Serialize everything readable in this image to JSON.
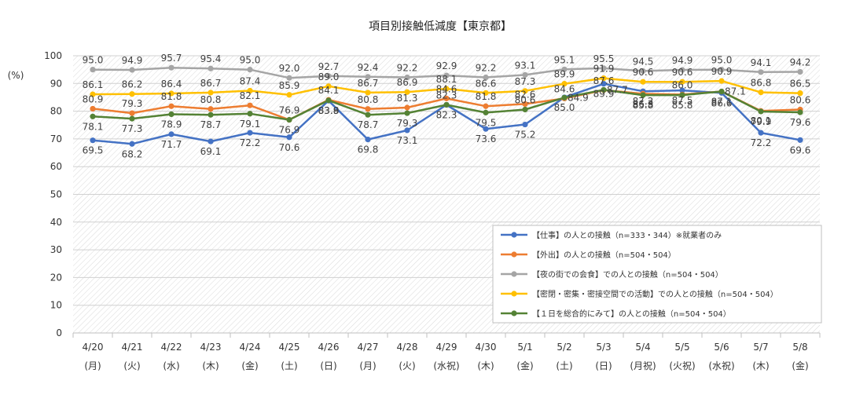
{
  "chart_data": {
    "type": "line",
    "title": "項目別接触低減度【東京都】",
    "ylabel": "(%)",
    "xlabel": "",
    "ylim": [
      0,
      100
    ],
    "yticks": [
      0,
      10,
      20,
      30,
      40,
      50,
      60,
      70,
      80,
      90,
      100
    ],
    "grid": true,
    "legend_position": "bottom-right",
    "categories": [
      {
        "date": "4/20",
        "day": "(月)"
      },
      {
        "date": "4/21",
        "day": "(火)"
      },
      {
        "date": "4/22",
        "day": "(水)"
      },
      {
        "date": "4/23",
        "day": "(木)"
      },
      {
        "date": "4/24",
        "day": "(金)"
      },
      {
        "date": "4/25",
        "day": "(土)"
      },
      {
        "date": "4/26",
        "day": "(日)"
      },
      {
        "date": "4/27",
        "day": "(月)"
      },
      {
        "date": "4/28",
        "day": "(火)"
      },
      {
        "date": "4/29",
        "day": "(水祝)"
      },
      {
        "date": "4/30",
        "day": "(木)"
      },
      {
        "date": "5/1",
        "day": "(金)"
      },
      {
        "date": "5/2",
        "day": "(土)"
      },
      {
        "date": "5/3",
        "day": "(日)"
      },
      {
        "date": "5/4",
        "day": "(月祝)"
      },
      {
        "date": "5/5",
        "day": "(火祝)"
      },
      {
        "date": "5/6",
        "day": "(水祝)"
      },
      {
        "date": "5/7",
        "day": "(木)"
      },
      {
        "date": "5/8",
        "day": "(金)"
      }
    ],
    "series": [
      {
        "name": "【仕事】の人との接触（n=333・344）※就業者のみ",
        "color": "#4472C4",
        "values": [
          69.5,
          68.2,
          71.7,
          69.1,
          72.2,
          70.6,
          83.8,
          69.8,
          73.1,
          82.3,
          73.6,
          75.2,
          85.0,
          89.9,
          87.2,
          87.5,
          86.6,
          72.2,
          69.6
        ]
      },
      {
        "name": "【外出】の人との接触（n=504・504）",
        "color": "#ED7D31",
        "values": [
          80.9,
          79.3,
          81.8,
          80.8,
          82.1,
          76.9,
          84.1,
          80.8,
          81.3,
          84.6,
          81.8,
          82.6,
          84.6,
          87.6,
          86.3,
          86.0,
          87.1,
          80.1,
          80.6
        ]
      },
      {
        "name": "【夜の街での会食】での人との接触（n=504・504）",
        "color": "#A5A5A5",
        "values": [
          95.0,
          94.9,
          95.7,
          95.4,
          95.0,
          92.0,
          92.7,
          92.4,
          92.2,
          92.9,
          92.2,
          93.1,
          95.1,
          95.5,
          94.5,
          94.9,
          95.0,
          94.1,
          94.2
        ]
      },
      {
        "name": "【密閉・密集・密接空間での活動】での人との接触（n=504・504）",
        "color": "#FFC000",
        "values": [
          86.1,
          86.2,
          86.4,
          86.7,
          87.4,
          85.9,
          89.0,
          86.7,
          86.9,
          88.1,
          86.6,
          87.3,
          89.9,
          91.9,
          90.6,
          90.6,
          90.9,
          86.8,
          86.5
        ]
      },
      {
        "name": "【１日を総合的にみて】の人との接触（n=504・504）",
        "color": "#548235",
        "values": [
          78.1,
          77.3,
          78.9,
          78.7,
          79.1,
          76.9,
          83.9,
          78.7,
          79.3,
          82.3,
          79.5,
          80.6,
          84.9,
          87.7,
          85.8,
          85.8,
          87.1,
          79.9,
          79.6
        ]
      }
    ],
    "data_labels": [
      {
        "series": 0,
        "point": 0,
        "text": "69.5",
        "pos": "below"
      },
      {
        "series": 0,
        "point": 1,
        "text": "68.2",
        "pos": "below"
      },
      {
        "series": 0,
        "point": 2,
        "text": "71.7",
        "pos": "below"
      },
      {
        "series": 0,
        "point": 3,
        "text": "69.1",
        "pos": "below"
      },
      {
        "series": 0,
        "point": 4,
        "text": "72.2",
        "pos": "below"
      },
      {
        "series": 0,
        "point": 5,
        "text": "70.6",
        "pos": "below"
      },
      {
        "series": 0,
        "point": 6,
        "text": "83.8",
        "pos": "below"
      },
      {
        "series": 0,
        "point": 7,
        "text": "69.8",
        "pos": "below"
      },
      {
        "series": 0,
        "point": 8,
        "text": "73.1",
        "pos": "below"
      },
      {
        "series": 0,
        "point": 9,
        "text": "82.3",
        "pos": "below"
      },
      {
        "series": 0,
        "point": 10,
        "text": "73.6",
        "pos": "below"
      },
      {
        "series": 0,
        "point": 11,
        "text": "75.2",
        "pos": "below"
      },
      {
        "series": 0,
        "point": 12,
        "text": "85.0",
        "pos": "below"
      },
      {
        "series": 0,
        "point": 13,
        "text": "89.9",
        "pos": "below"
      },
      {
        "series": 0,
        "point": 14,
        "text": "87.2",
        "pos": "below"
      },
      {
        "series": 0,
        "point": 15,
        "text": "87.5",
        "pos": "below"
      },
      {
        "series": 0,
        "point": 16,
        "text": "86.6",
        "pos": "below"
      },
      {
        "series": 0,
        "point": 17,
        "text": "72.2",
        "pos": "below"
      },
      {
        "series": 0,
        "point": 18,
        "text": "69.6",
        "pos": "below"
      },
      {
        "series": 1,
        "point": 0,
        "text": "80.9",
        "pos": "above"
      },
      {
        "series": 1,
        "point": 1,
        "text": "79.3",
        "pos": "above"
      },
      {
        "series": 1,
        "point": 2,
        "text": "81.8",
        "pos": "above"
      },
      {
        "series": 1,
        "point": 3,
        "text": "80.8",
        "pos": "above"
      },
      {
        "series": 1,
        "point": 4,
        "text": "82.1",
        "pos": "above"
      },
      {
        "series": 1,
        "point": 5,
        "text": "76.9",
        "pos": "above"
      },
      {
        "series": 1,
        "point": 6,
        "text": "84.1",
        "pos": "above"
      },
      {
        "series": 1,
        "point": 7,
        "text": "80.8",
        "pos": "above"
      },
      {
        "series": 1,
        "point": 8,
        "text": "81.3",
        "pos": "above"
      },
      {
        "series": 1,
        "point": 9,
        "text": "84.6",
        "pos": "above"
      },
      {
        "series": 1,
        "point": 10,
        "text": "81.8",
        "pos": "above"
      },
      {
        "series": 1,
        "point": 11,
        "text": "82.6",
        "pos": "above"
      },
      {
        "series": 1,
        "point": 12,
        "text": "84.6",
        "pos": "above"
      },
      {
        "series": 1,
        "point": 13,
        "text": "87.6",
        "pos": "above"
      },
      {
        "series": 1,
        "point": 14,
        "text": "86.3",
        "pos": "below"
      },
      {
        "series": 1,
        "point": 15,
        "text": "86.0",
        "pos": "above"
      },
      {
        "series": 1,
        "point": 16,
        "text": "87.1",
        "pos": "right"
      },
      {
        "series": 1,
        "point": 17,
        "text": "80.1",
        "pos": "below"
      },
      {
        "series": 1,
        "point": 18,
        "text": "80.6",
        "pos": "above"
      },
      {
        "series": 2,
        "point": 0,
        "text": "95.0",
        "pos": "above"
      },
      {
        "series": 2,
        "point": 1,
        "text": "94.9",
        "pos": "above"
      },
      {
        "series": 2,
        "point": 2,
        "text": "95.7",
        "pos": "above"
      },
      {
        "series": 2,
        "point": 3,
        "text": "95.4",
        "pos": "above"
      },
      {
        "series": 2,
        "point": 4,
        "text": "95.0",
        "pos": "above"
      },
      {
        "series": 2,
        "point": 5,
        "text": "92.0",
        "pos": "above"
      },
      {
        "series": 2,
        "point": 6,
        "text": "92.7",
        "pos": "above"
      },
      {
        "series": 2,
        "point": 7,
        "text": "92.4",
        "pos": "above"
      },
      {
        "series": 2,
        "point": 8,
        "text": "92.2",
        "pos": "above"
      },
      {
        "series": 2,
        "point": 9,
        "text": "92.9",
        "pos": "above"
      },
      {
        "series": 2,
        "point": 10,
        "text": "92.2",
        "pos": "above"
      },
      {
        "series": 2,
        "point": 11,
        "text": "93.1",
        "pos": "above"
      },
      {
        "series": 2,
        "point": 12,
        "text": "95.1",
        "pos": "above"
      },
      {
        "series": 2,
        "point": 13,
        "text": "95.5",
        "pos": "above"
      },
      {
        "series": 2,
        "point": 14,
        "text": "94.5",
        "pos": "above"
      },
      {
        "series": 2,
        "point": 15,
        "text": "94.9",
        "pos": "above"
      },
      {
        "series": 2,
        "point": 16,
        "text": "95.0",
        "pos": "above"
      },
      {
        "series": 2,
        "point": 17,
        "text": "94.1",
        "pos": "above"
      },
      {
        "series": 2,
        "point": 18,
        "text": "94.2",
        "pos": "above"
      },
      {
        "series": 3,
        "point": 0,
        "text": "86.1",
        "pos": "above"
      },
      {
        "series": 3,
        "point": 1,
        "text": "86.2",
        "pos": "above"
      },
      {
        "series": 3,
        "point": 2,
        "text": "86.4",
        "pos": "above"
      },
      {
        "series": 3,
        "point": 3,
        "text": "86.7",
        "pos": "above"
      },
      {
        "series": 3,
        "point": 4,
        "text": "87.4",
        "pos": "above"
      },
      {
        "series": 3,
        "point": 5,
        "text": "85.9",
        "pos": "above"
      },
      {
        "series": 3,
        "point": 6,
        "text": "89.0",
        "pos": "above"
      },
      {
        "series": 3,
        "point": 7,
        "text": "86.7",
        "pos": "above"
      },
      {
        "series": 3,
        "point": 8,
        "text": "86.9",
        "pos": "above"
      },
      {
        "series": 3,
        "point": 9,
        "text": "88.1",
        "pos": "above"
      },
      {
        "series": 3,
        "point": 10,
        "text": "86.6",
        "pos": "above"
      },
      {
        "series": 3,
        "point": 11,
        "text": "87.3",
        "pos": "above"
      },
      {
        "series": 3,
        "point": 12,
        "text": "89.9",
        "pos": "above"
      },
      {
        "series": 3,
        "point": 13,
        "text": "91.9",
        "pos": "above"
      },
      {
        "series": 3,
        "point": 14,
        "text": "90.6",
        "pos": "above"
      },
      {
        "series": 3,
        "point": 15,
        "text": "90.6",
        "pos": "above"
      },
      {
        "series": 3,
        "point": 16,
        "text": "90.9",
        "pos": "above"
      },
      {
        "series": 3,
        "point": 17,
        "text": "86.8",
        "pos": "above"
      },
      {
        "series": 3,
        "point": 18,
        "text": "86.5",
        "pos": "above"
      },
      {
        "series": 4,
        "point": 0,
        "text": "78.1",
        "pos": "below"
      },
      {
        "series": 4,
        "point": 1,
        "text": "77.3",
        "pos": "below"
      },
      {
        "series": 4,
        "point": 2,
        "text": "78.9",
        "pos": "below"
      },
      {
        "series": 4,
        "point": 3,
        "text": "78.7",
        "pos": "below"
      },
      {
        "series": 4,
        "point": 4,
        "text": "79.1",
        "pos": "below"
      },
      {
        "series": 4,
        "point": 5,
        "text": "76.9",
        "pos": "below"
      },
      {
        "series": 4,
        "point": 6,
        "text": "83.9",
        "pos": "below"
      },
      {
        "series": 4,
        "point": 7,
        "text": "78.7",
        "pos": "below"
      },
      {
        "series": 4,
        "point": 8,
        "text": "79.3",
        "pos": "below"
      },
      {
        "series": 4,
        "point": 9,
        "text": "82.3",
        "pos": "above"
      },
      {
        "series": 4,
        "point": 10,
        "text": "79.5",
        "pos": "below"
      },
      {
        "series": 4,
        "point": 11,
        "text": "80.6",
        "pos": "above"
      },
      {
        "series": 4,
        "point": 12,
        "text": "84.9",
        "pos": "right"
      },
      {
        "series": 4,
        "point": 13,
        "text": "87.7",
        "pos": "right"
      },
      {
        "series": 4,
        "point": 14,
        "text": "85.8",
        "pos": "below"
      },
      {
        "series": 4,
        "point": 15,
        "text": "85.8",
        "pos": "below"
      },
      {
        "series": 4,
        "point": 16,
        "text": "87.1",
        "pos": "below"
      },
      {
        "series": 4,
        "point": 17,
        "text": "79.9",
        "pos": "below"
      },
      {
        "series": 4,
        "point": 18,
        "text": "79.6",
        "pos": "below"
      }
    ]
  }
}
